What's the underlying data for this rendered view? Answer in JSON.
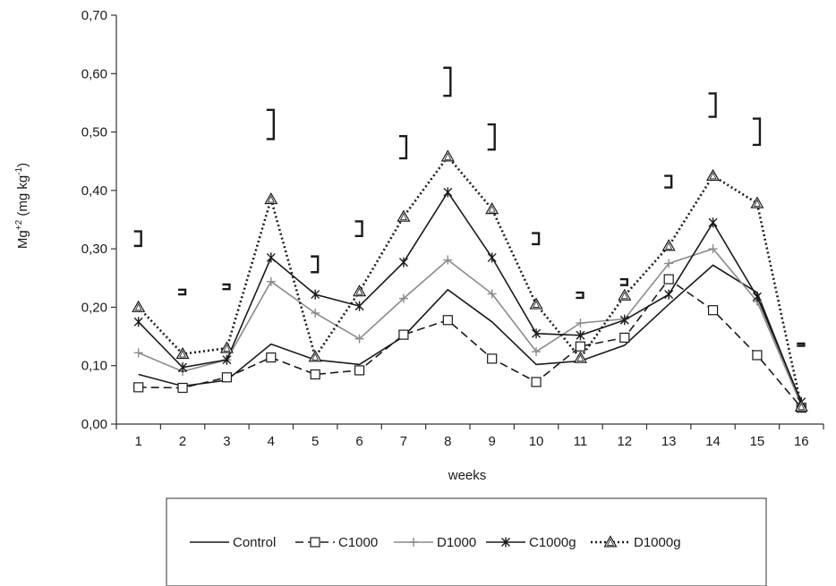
{
  "chart_data": {
    "type": "line",
    "title": "",
    "xlabel": "weeks",
    "ylabel_main": "Mg",
    "ylabel_sup1": "+2",
    "ylabel_unit": " (mg  kg",
    "ylabel_sup2": "-1",
    "ylabel_close": ")",
    "ylim": [
      0,
      0.7
    ],
    "y_ticks": [
      "0,00",
      "0,10",
      "0,20",
      "0,30",
      "0,40",
      "0,50",
      "0,60",
      "0,70"
    ],
    "categories": [
      "1",
      "2",
      "3",
      "4",
      "5",
      "6",
      "7",
      "8",
      "9",
      "10",
      "11",
      "12",
      "13",
      "14",
      "15",
      "16"
    ],
    "grid": false,
    "legend_position": "bottom",
    "series": [
      {
        "name": "Control",
        "style": "solid",
        "color": "#1a1a1a",
        "marker": "none",
        "values": [
          0.085,
          0.065,
          0.075,
          0.137,
          0.11,
          0.102,
          0.15,
          0.23,
          0.175,
          0.102,
          0.108,
          0.135,
          0.205,
          0.272,
          0.225,
          0.035
        ]
      },
      {
        "name": "C1000",
        "style": "dashed",
        "color": "#1a1a1a",
        "marker": "square",
        "values": [
          0.063,
          0.062,
          0.08,
          0.114,
          0.085,
          0.092,
          0.153,
          0.178,
          0.112,
          0.072,
          0.133,
          0.148,
          0.248,
          0.195,
          0.118,
          0.028
        ]
      },
      {
        "name": "D1000",
        "style": "solid",
        "color": "#8a8a8a",
        "marker": "plus",
        "values": [
          0.122,
          0.09,
          0.11,
          0.244,
          0.19,
          0.146,
          0.215,
          0.281,
          0.223,
          0.124,
          0.173,
          0.18,
          0.275,
          0.3,
          0.21,
          0.032
        ]
      },
      {
        "name": "C1000g",
        "style": "solid",
        "color": "#1a1a1a",
        "marker": "star",
        "values": [
          0.175,
          0.097,
          0.11,
          0.285,
          0.222,
          0.202,
          0.277,
          0.397,
          0.285,
          0.155,
          0.152,
          0.178,
          0.222,
          0.345,
          0.218,
          0.038
        ]
      },
      {
        "name": "D1000g",
        "style": "dotted",
        "color": "#1a1a1a",
        "marker": "triangle",
        "values": [
          0.2,
          0.12,
          0.13,
          0.385,
          0.115,
          0.227,
          0.355,
          0.458,
          0.368,
          0.205,
          0.113,
          0.22,
          0.305,
          0.425,
          0.378,
          0.03
        ]
      }
    ],
    "error_brackets": [
      {
        "week": "1",
        "low": 0.305,
        "high": 0.33
      },
      {
        "week": "2",
        "low": 0.222,
        "high": 0.23
      },
      {
        "week": "3",
        "low": 0.231,
        "high": 0.239
      },
      {
        "week": "4",
        "low": 0.488,
        "high": 0.538
      },
      {
        "week": "5",
        "low": 0.26,
        "high": 0.287
      },
      {
        "week": "6",
        "low": 0.322,
        "high": 0.347
      },
      {
        "week": "7",
        "low": 0.455,
        "high": 0.493
      },
      {
        "week": "8",
        "low": 0.562,
        "high": 0.61
      },
      {
        "week": "9",
        "low": 0.47,
        "high": 0.513
      },
      {
        "week": "10",
        "low": 0.308,
        "high": 0.327
      },
      {
        "week": "11",
        "low": 0.216,
        "high": 0.225
      },
      {
        "week": "12",
        "low": 0.238,
        "high": 0.248
      },
      {
        "week": "13",
        "low": 0.405,
        "high": 0.425
      },
      {
        "week": "14",
        "low": 0.526,
        "high": 0.566
      },
      {
        "week": "15",
        "low": 0.478,
        "high": 0.523
      },
      {
        "week": "16",
        "low": 0.134,
        "high": 0.138
      }
    ]
  }
}
